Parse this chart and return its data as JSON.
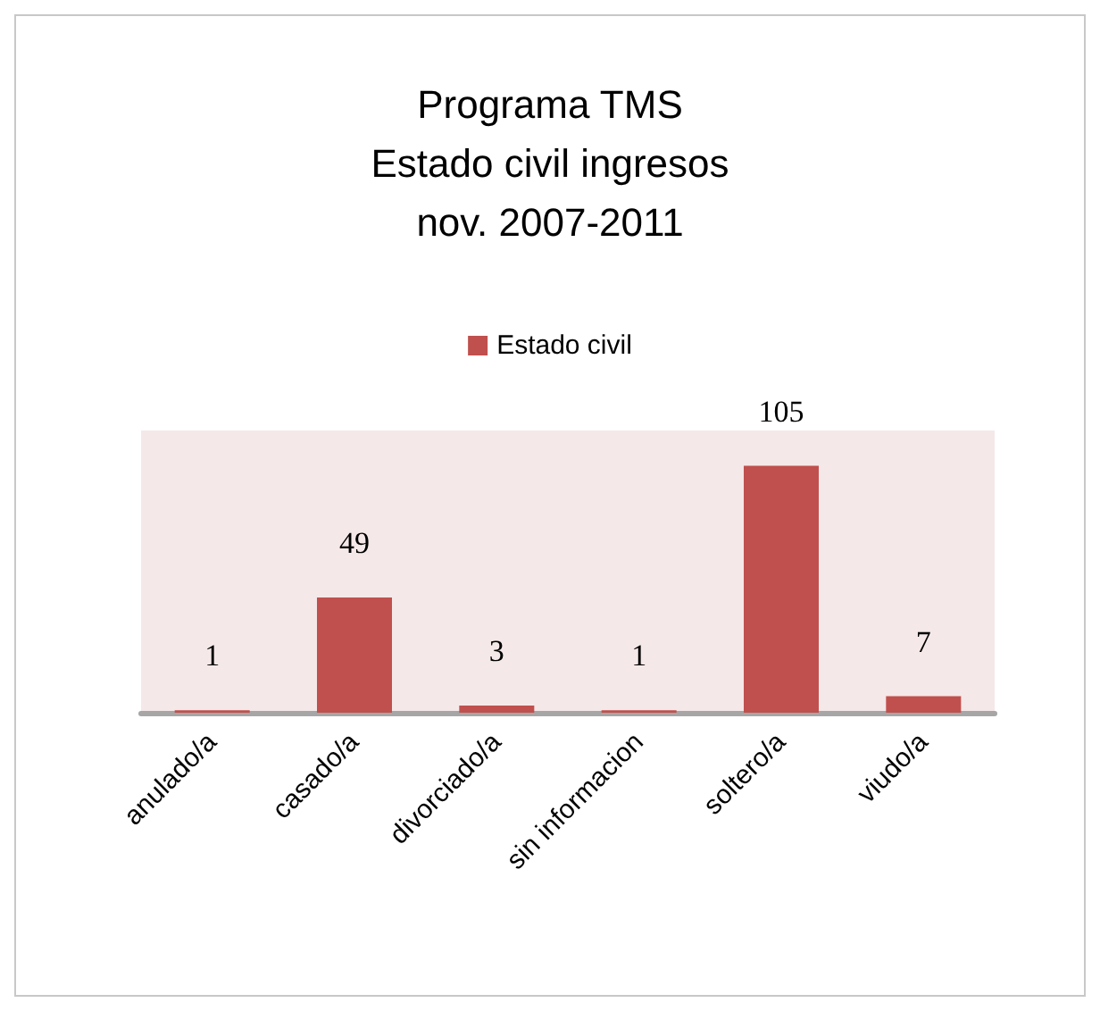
{
  "chart_data": {
    "type": "bar",
    "title": "Programa TMS\nEstado civil ingresos\nnov. 2007-2011",
    "categories": [
      "anulado/a",
      "casado/a",
      "divorciado/a",
      "sin informacion",
      "soltero/a",
      "viudo/a"
    ],
    "series": [
      {
        "name": "Estado civil",
        "color": "#c0504d",
        "values": [
          1,
          49,
          3,
          1,
          105,
          7
        ]
      }
    ],
    "data_labels": true,
    "legend": "top"
  }
}
